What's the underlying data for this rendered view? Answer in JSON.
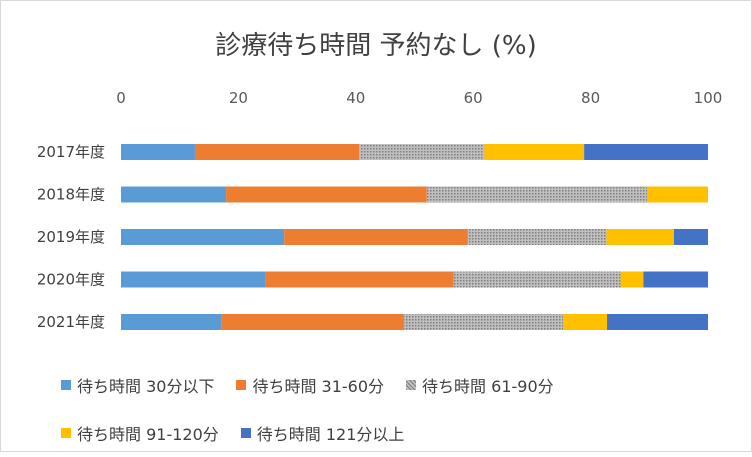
{
  "chart_data": {
    "type": "bar",
    "orientation": "horizontal",
    "stacked": true,
    "title": "診療待ち時間 予約なし (%)",
    "categories": [
      "2017年度",
      "2018年度",
      "2019年度",
      "2020年度",
      "2021年度"
    ],
    "xlim": [
      0,
      100
    ],
    "xticks": [
      "0",
      "20",
      "40",
      "60",
      "80",
      "100"
    ],
    "grid": false,
    "legend_position": "bottom",
    "series": [
      {
        "name": "待ち時間 30分以下",
        "color": "#5b9bd5",
        "pattern": "solid",
        "values": [
          12.6,
          17.9,
          27.8,
          24.6,
          17.1
        ]
      },
      {
        "name": "待ち時間 31-60分",
        "color": "#ed7d31",
        "pattern": "solid",
        "values": [
          28.0,
          34.2,
          31.3,
          32.1,
          31.1
        ]
      },
      {
        "name": "待ち時間 61-90分",
        "color": "#a5a5a5",
        "pattern": "dotted",
        "values": [
          21.3,
          37.5,
          23.6,
          28.4,
          27.1
        ]
      },
      {
        "name": "待ち時間 91-120分",
        "color": "#ffc000",
        "pattern": "solid",
        "values": [
          17.0,
          10.4,
          11.5,
          3.9,
          7.5
        ]
      },
      {
        "name": "待ち時間 121分以上",
        "color": "#4472c4",
        "pattern": "solid",
        "values": [
          21.1,
          0,
          5.8,
          11.0,
          17.2
        ]
      }
    ]
  }
}
